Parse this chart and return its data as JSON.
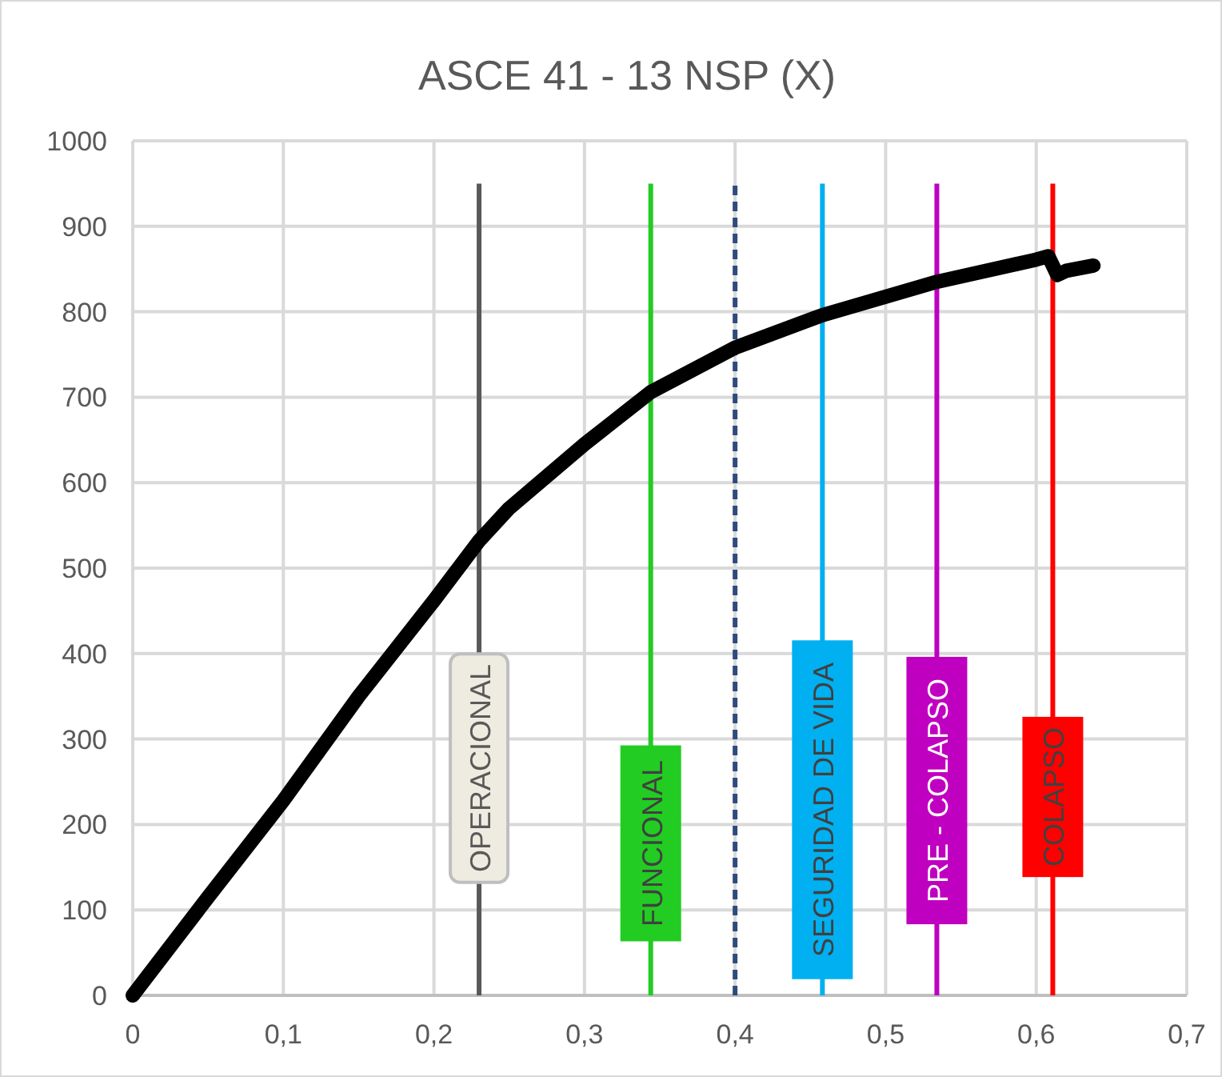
{
  "chart_data": {
    "type": "line",
    "title": "ASCE 41 - 13 NSP (X)",
    "series": [
      {
        "color": "#000000",
        "x": [
          0,
          0.05,
          0.1,
          0.15,
          0.2,
          0.23,
          0.25,
          0.3,
          0.344,
          0.4,
          0.458,
          0.534,
          0.6,
          0.608,
          0.614,
          0.62,
          0.638
        ],
        "values": [
          0,
          115,
          228,
          350,
          462,
          532,
          570,
          645,
          706,
          758,
          796,
          835,
          861,
          865,
          843,
          848,
          854
        ]
      }
    ],
    "xlim": [
      0,
      0.7
    ],
    "ylim": [
      0,
      1000
    ],
    "xticks": [
      0,
      {
        "value": 0.1,
        "label": "0,1"
      },
      {
        "value": 0.2,
        "label": "0,2"
      },
      {
        "value": 0.3,
        "label": "0,3"
      },
      {
        "value": 0.4,
        "label": "0,4"
      },
      {
        "value": 0.5,
        "label": "0,5"
      },
      {
        "value": 0.6,
        "label": "0,6"
      },
      {
        "value": 0.7,
        "label": "0,7"
      }
    ],
    "yticks": [
      0,
      100,
      200,
      300,
      400,
      500,
      600,
      700,
      800,
      900,
      1000
    ],
    "grid": true,
    "line_style": "solid",
    "ref_lines": [
      {
        "axis": "x",
        "value": 0.23,
        "label": "OPERACIONAL",
        "color": "#595959",
        "line_style": "solid"
      },
      {
        "axis": "x",
        "value": 0.344,
        "label": "FUNCIONAL",
        "color": "#22cc22",
        "line_style": "solid"
      },
      {
        "axis": "x",
        "value": 0.4,
        "color": "#2f4b7c",
        "line_style": "dashed"
      },
      {
        "axis": "x",
        "value": 0.458,
        "label": "SEGURIDAD DE VIDA",
        "color": "#00b0f0",
        "line_style": "solid"
      },
      {
        "axis": "x",
        "value": 0.534,
        "label": "PRE - COLAPSO",
        "color": "#c000c0",
        "line_style": "solid"
      },
      {
        "axis": "x",
        "value": 0.611,
        "label": "COLAPSO",
        "color": "#ff0000",
        "line_style": "solid"
      }
    ]
  }
}
